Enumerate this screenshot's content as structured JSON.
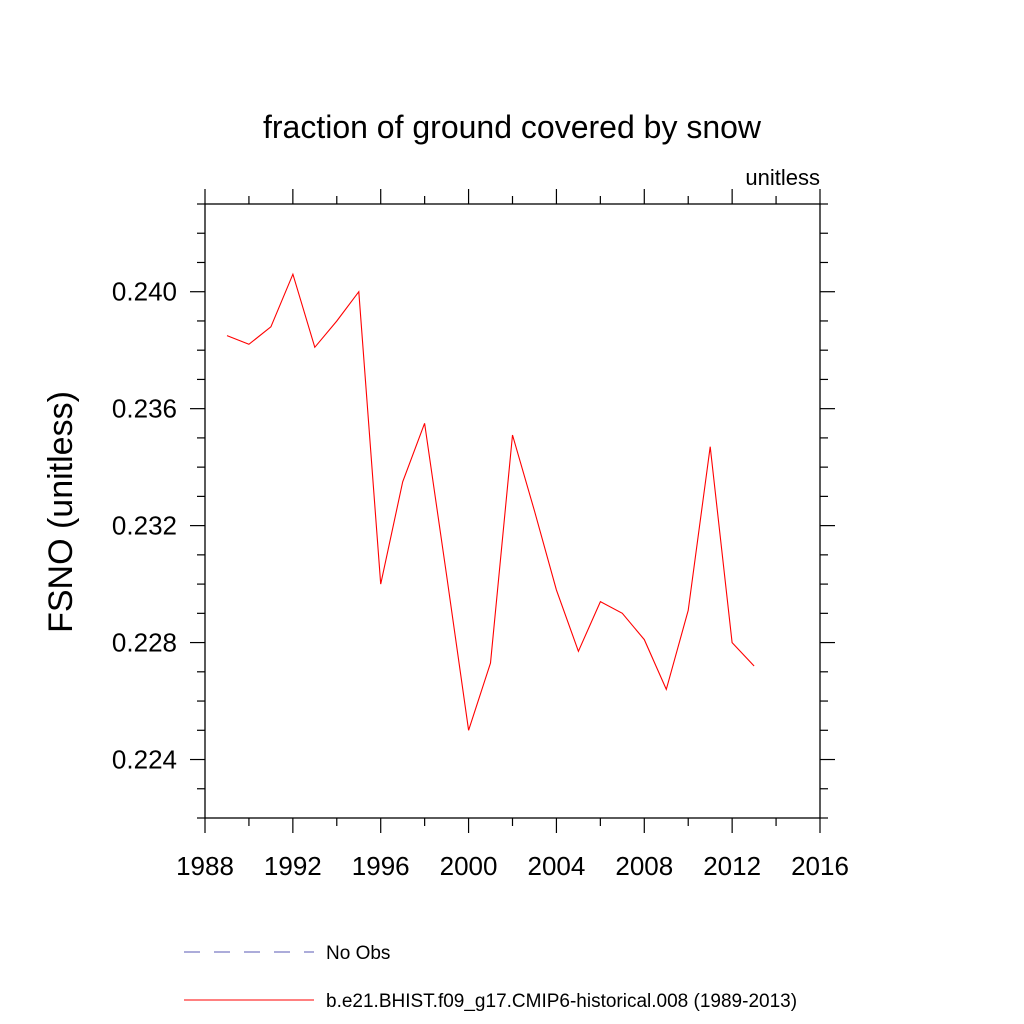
{
  "chart_data": {
    "type": "line",
    "title": "fraction of ground covered by snow",
    "units_label": "unitless",
    "xlabel": "",
    "ylabel": "FSNO  (unitless)",
    "xlim": [
      1988,
      2016
    ],
    "ylim": [
      0.222,
      0.243
    ],
    "x_ticks": [
      1988,
      1992,
      1996,
      2000,
      2004,
      2008,
      2012,
      2016
    ],
    "x_tick_labels": [
      "1988",
      "1992",
      "1996",
      "2000",
      "2004",
      "2008",
      "2012",
      "2016"
    ],
    "y_ticks": [
      0.224,
      0.228,
      0.232,
      0.236,
      0.24
    ],
    "y_tick_labels": [
      "0.224",
      "0.228",
      "0.232",
      "0.236",
      "0.240"
    ],
    "grid": false,
    "series": [
      {
        "name": "b.e21.BHIST.f09_g17.CMIP6-historical.008 (1989-2013)",
        "color": "#ff0000",
        "style": "solid",
        "x": [
          1989,
          1990,
          1991,
          1992,
          1993,
          1994,
          1995,
          1996,
          1997,
          1998,
          1999,
          2000,
          2001,
          2002,
          2003,
          2004,
          2005,
          2006,
          2007,
          2008,
          2009,
          2010,
          2011,
          2012,
          2013
        ],
        "values": [
          0.2385,
          0.2382,
          0.2388,
          0.2406,
          0.2381,
          0.239,
          0.24,
          0.23,
          0.2335,
          0.2355,
          0.2303,
          0.225,
          0.2273,
          0.2351,
          0.2325,
          0.2298,
          0.2277,
          0.2294,
          0.229,
          0.2281,
          0.2264,
          0.2291,
          0.2347,
          0.228,
          0.2272
        ]
      }
    ],
    "legend": [
      {
        "label": "No Obs",
        "color": "#5a5ab4",
        "style": "dashed"
      },
      {
        "label": "b.e21.BHIST.f09_g17.CMIP6-historical.008 (1989-2013)",
        "color": "#ff0000",
        "style": "solid"
      }
    ]
  }
}
